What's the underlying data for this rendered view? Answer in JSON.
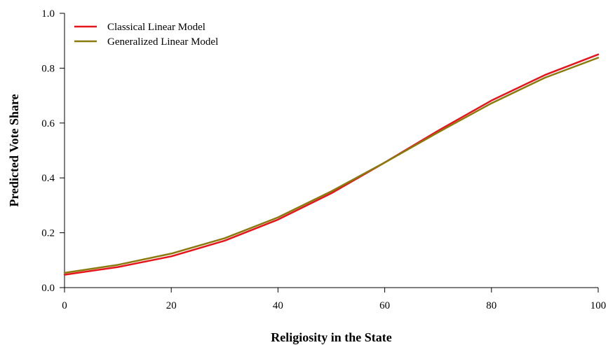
{
  "chart_data": {
    "type": "line",
    "title": "",
    "xlabel": "Religiosity in the State",
    "ylabel": "Predicted Vote Share",
    "xlim": [
      0,
      100
    ],
    "ylim": [
      0,
      1
    ],
    "xticks": [
      0,
      20,
      40,
      60,
      80,
      100
    ],
    "yticks": [
      0.0,
      0.2,
      0.4,
      0.6,
      0.8,
      1.0
    ],
    "xtick_labels": [
      "0",
      "20",
      "40",
      "60",
      "80",
      "100"
    ],
    "ytick_labels": [
      "0.0",
      "0.2",
      "0.4",
      "0.6",
      "0.8",
      "1.0"
    ],
    "grid": false,
    "legend_position": "top-left",
    "x": [
      0,
      10,
      20,
      30,
      40,
      50,
      60,
      70,
      80,
      90,
      100
    ],
    "series": [
      {
        "name": "Classical Linear Model",
        "color": "#e8141c",
        "values": [
          0.047,
          0.075,
          0.114,
          0.171,
          0.248,
          0.344,
          0.456,
          0.572,
          0.682,
          0.775,
          0.85
        ]
      },
      {
        "name": "Generalized Linear Model",
        "color": "#8a7a0c",
        "values": [
          0.054,
          0.083,
          0.124,
          0.18,
          0.256,
          0.351,
          0.456,
          0.566,
          0.672,
          0.765,
          0.838
        ]
      }
    ]
  }
}
